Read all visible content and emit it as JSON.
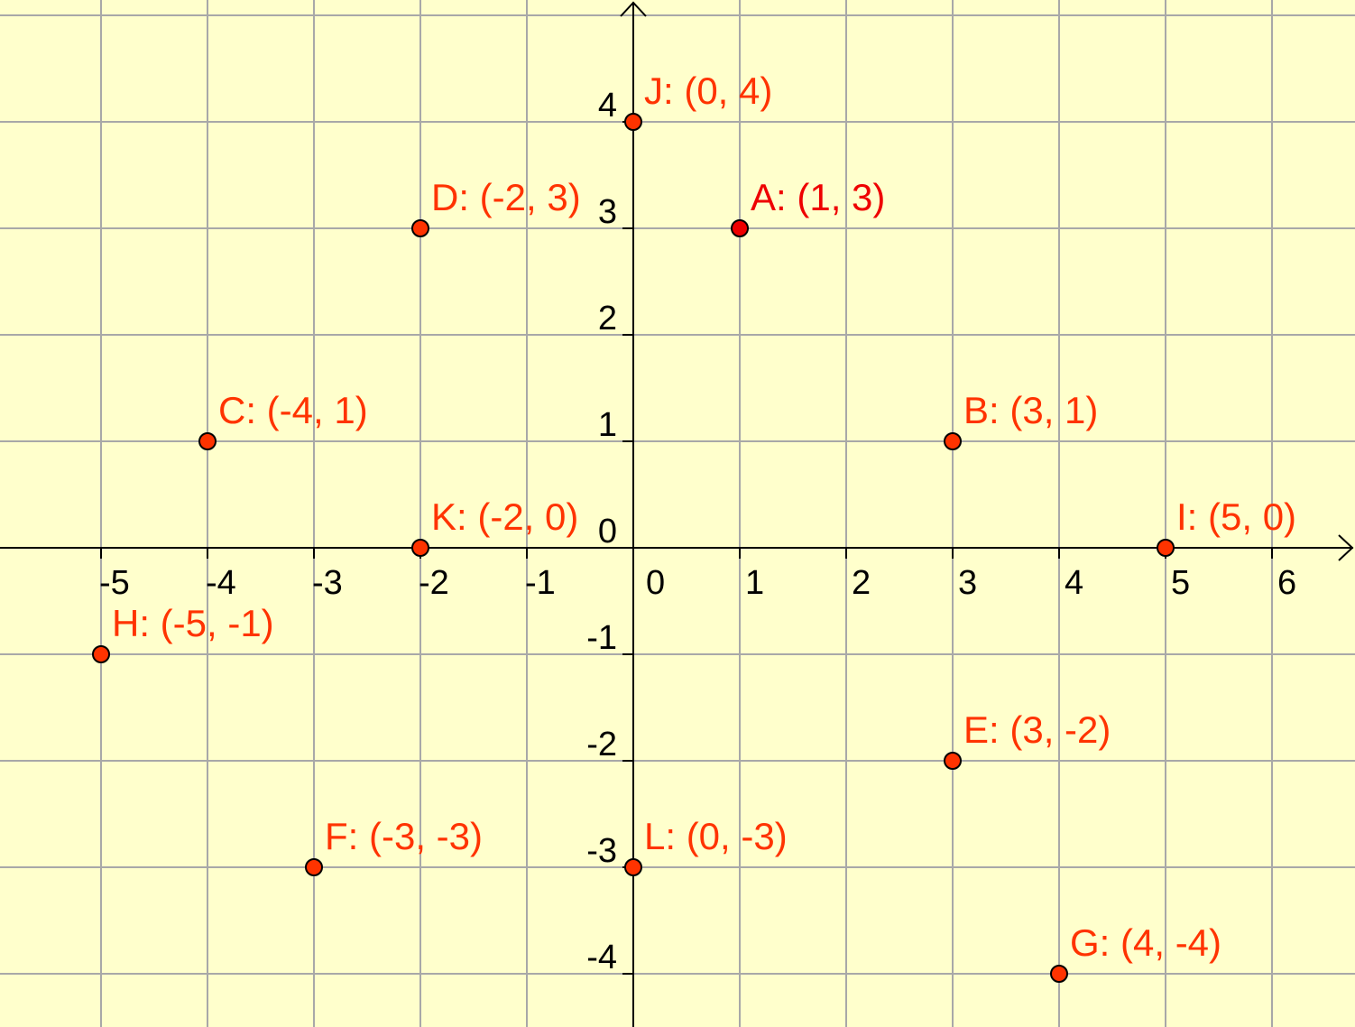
{
  "chart_data": {
    "type": "scatter",
    "title": "",
    "xlabel": "",
    "ylabel": "",
    "xlim": [
      -6,
      6.7
    ],
    "ylim": [
      -4.5,
      5.1
    ],
    "grid": true,
    "x_ticks": [
      "-5",
      "-4",
      "-3",
      "-2",
      "-1",
      "0",
      "1",
      "2",
      "3",
      "4",
      "5",
      "6"
    ],
    "y_ticks": [
      "4",
      "3",
      "2",
      "1",
      "0",
      "-1",
      "-2",
      "-3",
      "-4"
    ],
    "points": [
      {
        "label": "J: (0, 4)",
        "x": 0,
        "y": 4,
        "color": "#ff3300"
      },
      {
        "label": "D: (-2, 3)",
        "x": -2,
        "y": 3,
        "color": "#ff3300"
      },
      {
        "label": "A: (1, 3)",
        "x": 1,
        "y": 3,
        "color": "#ee0000"
      },
      {
        "label": "C: (-4, 1)",
        "x": -4,
        "y": 1,
        "color": "#ff3300"
      },
      {
        "label": "B: (3, 1)",
        "x": 3,
        "y": 1,
        "color": "#ff3300"
      },
      {
        "label": "K: (-2, 0)",
        "x": -2,
        "y": 0,
        "color": "#ff3300"
      },
      {
        "label": "I: (5, 0)",
        "x": 5,
        "y": 0,
        "color": "#ff3300"
      },
      {
        "label": "H: (-5, -1)",
        "x": -5,
        "y": -1,
        "color": "#ff3300"
      },
      {
        "label": "E: (3, -2)",
        "x": 3,
        "y": -2,
        "color": "#ff3300"
      },
      {
        "label": "F: (-3, -3)",
        "x": -3,
        "y": -3,
        "color": "#ff3300"
      },
      {
        "label": "L: (0, -3)",
        "x": 0,
        "y": -3,
        "color": "#ff3300"
      },
      {
        "label": "G: (4, -4)",
        "x": 4,
        "y": -4,
        "color": "#ff3300"
      }
    ],
    "colors": {
      "background": "#ffffcc",
      "grid": "#a8a8a8",
      "axis": "#000000"
    }
  }
}
